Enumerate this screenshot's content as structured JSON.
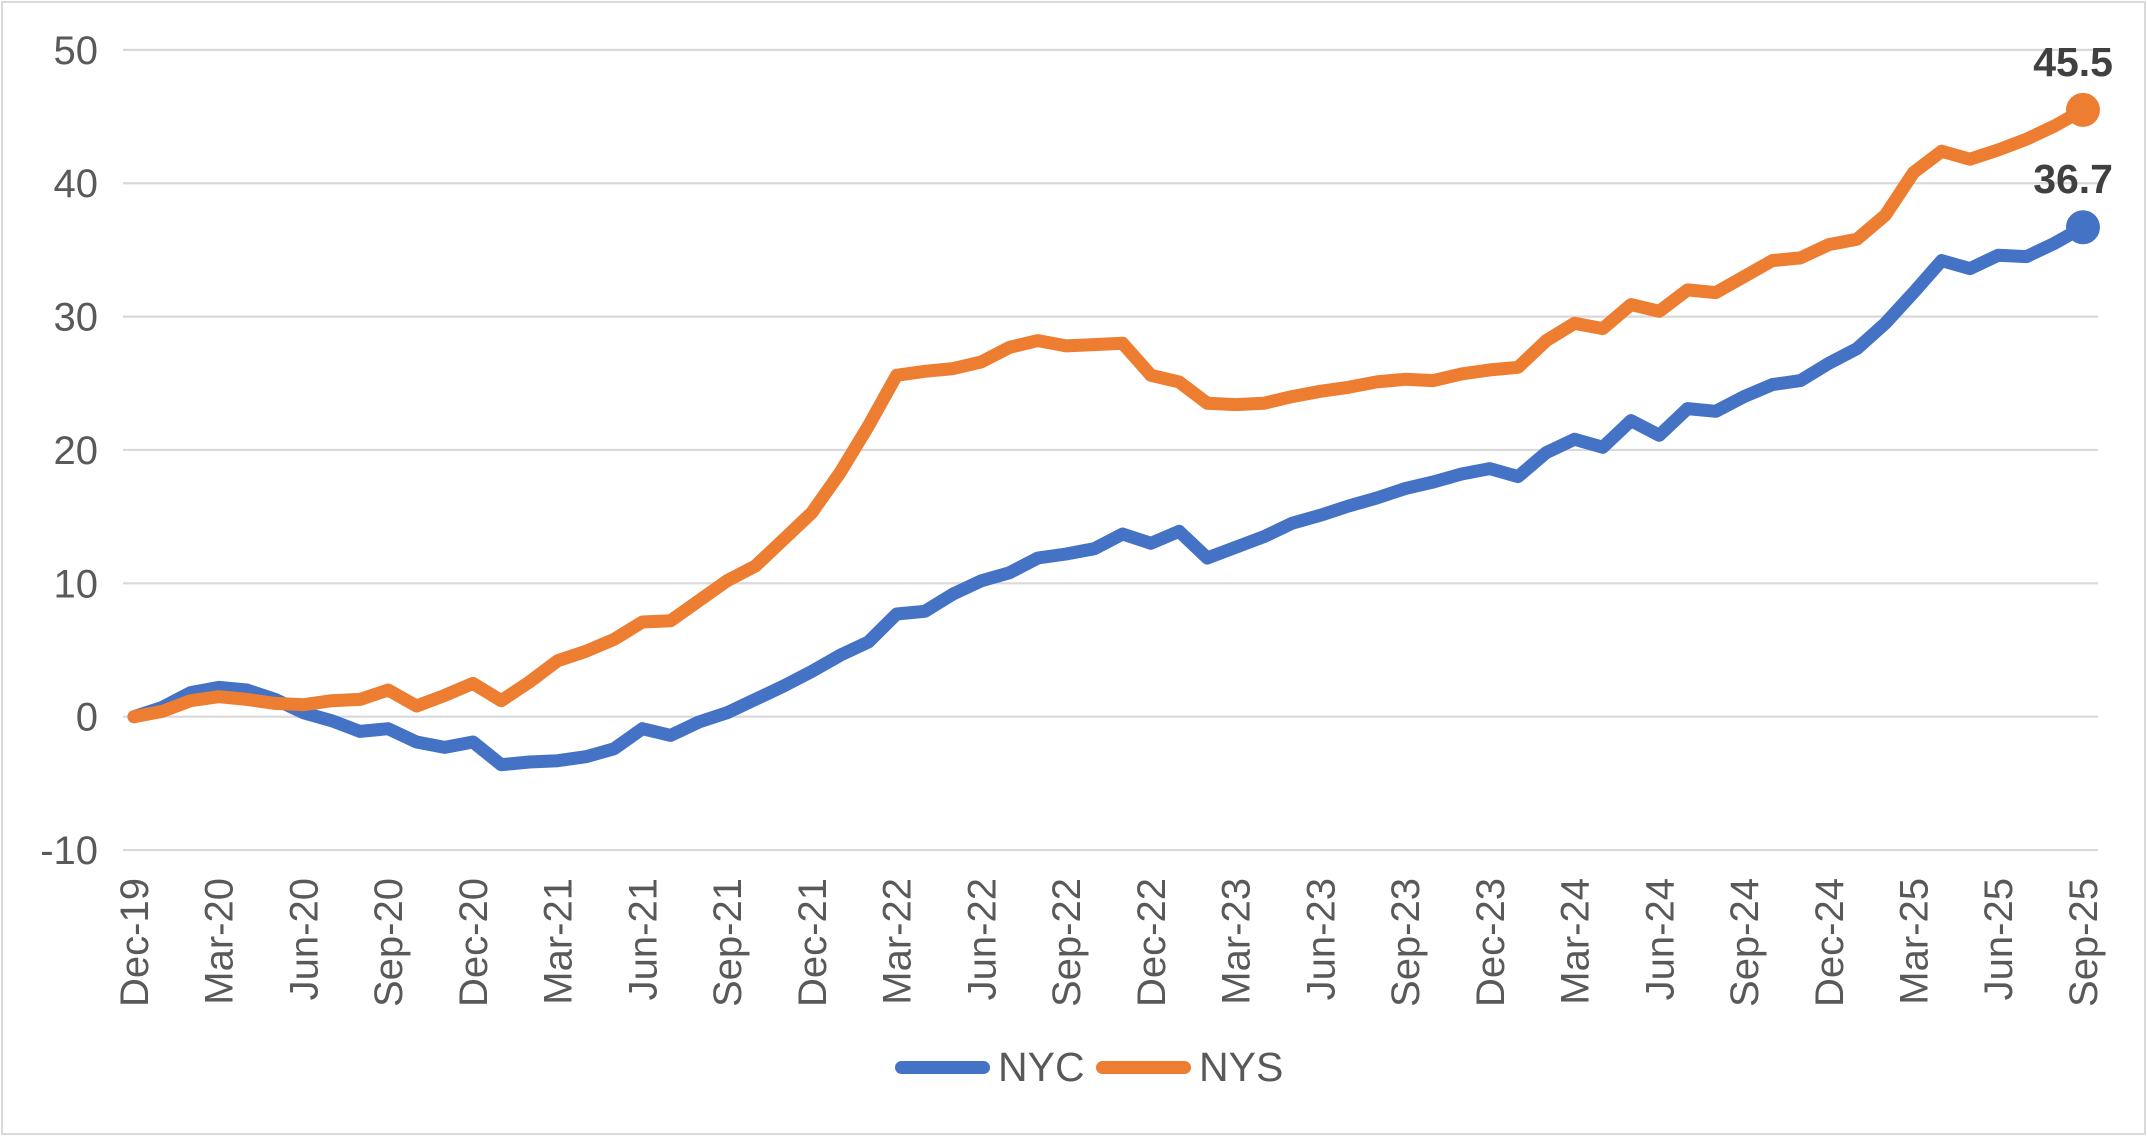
{
  "chart_data": {
    "type": "line",
    "title": "",
    "xlabel": "",
    "ylabel": "",
    "ylim": [
      -10,
      50
    ],
    "y_ticks": [
      50,
      40,
      30,
      20,
      10,
      0,
      -10
    ],
    "grid": true,
    "legend_position": "bottom",
    "tick_every": 3,
    "x_tick_labels": [
      "Dec-19",
      "Mar-20",
      "Jun-20",
      "Sep-20",
      "Dec-20",
      "Mar-21",
      "Jun-21",
      "Sep-21",
      "Dec-21",
      "Mar-22",
      "Jun-22",
      "Sep-22",
      "Dec-22",
      "Mar-23",
      "Jun-23",
      "Sep-23",
      "Dec-23",
      "Mar-24",
      "Jun-24",
      "Sep-24",
      "Dec-24",
      "Mar-25",
      "Jun-25",
      "Sep-25"
    ],
    "months": [
      "Dec-19",
      "Jan-20",
      "Feb-20",
      "Mar-20",
      "Apr-20",
      "May-20",
      "Jun-20",
      "Jul-20",
      "Aug-20",
      "Sep-20",
      "Oct-20",
      "Nov-20",
      "Dec-20",
      "Jan-21",
      "Feb-21",
      "Mar-21",
      "Apr-21",
      "May-21",
      "Jun-21",
      "Jul-21",
      "Aug-21",
      "Sep-21",
      "Oct-21",
      "Nov-21",
      "Dec-21",
      "Jan-22",
      "Feb-22",
      "Mar-22",
      "Apr-22",
      "May-22",
      "Jun-22",
      "Jul-22",
      "Aug-22",
      "Sep-22",
      "Oct-22",
      "Nov-22",
      "Dec-22",
      "Jan-23",
      "Feb-23",
      "Mar-23",
      "Apr-23",
      "May-23",
      "Jun-23",
      "Jul-23",
      "Aug-23",
      "Sep-23",
      "Oct-23",
      "Nov-23",
      "Dec-23",
      "Jan-24",
      "Feb-24",
      "Mar-24",
      "Apr-24",
      "May-24",
      "Jun-24",
      "Jul-24",
      "Aug-24",
      "Sep-24",
      "Oct-24",
      "Nov-24",
      "Dec-24",
      "Jan-25",
      "Feb-25",
      "Mar-25",
      "Apr-25",
      "May-25",
      "Jun-25",
      "Jul-25",
      "Aug-25",
      "Sep-25"
    ],
    "series": [
      {
        "name": "NYC",
        "color": "#4472C4",
        "end_label": "36.7",
        "values": [
          0.0,
          0.7,
          1.8,
          2.2,
          2.0,
          1.3,
          0.3,
          -0.3,
          -1.1,
          -0.9,
          -1.9,
          -2.3,
          -1.9,
          -3.6,
          -3.4,
          -3.3,
          -3.0,
          -2.4,
          -0.9,
          -1.4,
          -0.4,
          0.3,
          1.3,
          2.3,
          3.4,
          4.6,
          5.6,
          7.7,
          7.9,
          9.2,
          10.2,
          10.8,
          11.9,
          12.2,
          12.6,
          13.7,
          13.0,
          13.9,
          11.9,
          12.7,
          13.5,
          14.5,
          15.1,
          15.8,
          16.4,
          17.1,
          17.6,
          18.2,
          18.6,
          18.0,
          19.8,
          20.8,
          20.2,
          22.2,
          21.1,
          23.1,
          22.9,
          24.0,
          24.9,
          25.2,
          26.5,
          27.6,
          29.5,
          31.8,
          34.2,
          33.6,
          34.6,
          34.5,
          35.5,
          36.7
        ]
      },
      {
        "name": "NYS",
        "color": "#ED7D31",
        "end_label": "45.5",
        "values": [
          0.0,
          0.4,
          1.2,
          1.5,
          1.3,
          1.0,
          0.9,
          1.2,
          1.3,
          2.0,
          0.8,
          1.6,
          2.5,
          1.2,
          2.6,
          4.2,
          4.9,
          5.8,
          7.1,
          7.2,
          8.7,
          10.2,
          11.3,
          13.3,
          15.3,
          18.3,
          21.8,
          25.6,
          25.9,
          26.1,
          26.6,
          27.7,
          28.2,
          27.8,
          27.9,
          28.0,
          25.6,
          25.1,
          23.5,
          23.4,
          23.5,
          24.0,
          24.4,
          24.7,
          25.1,
          25.3,
          25.2,
          25.7,
          26.0,
          26.2,
          28.2,
          29.5,
          29.1,
          30.9,
          30.4,
          32.0,
          31.8,
          33.0,
          34.2,
          34.4,
          35.4,
          35.8,
          37.6,
          40.8,
          42.4,
          41.8,
          42.5,
          43.3,
          44.3,
          45.5
        ]
      }
    ]
  },
  "legend": {
    "items": [
      {
        "label": "NYC",
        "color": "#4472C4"
      },
      {
        "label": "NYS",
        "color": "#ED7D31"
      }
    ]
  },
  "colors": {
    "background": "#FFFFFF",
    "border": "#D9D9D9",
    "gridline": "#D9D9D9",
    "axis_text": "#595959",
    "data_label_text": "#404040",
    "nyc_line": "#4472C4",
    "nys_line": "#ED7D31"
  }
}
